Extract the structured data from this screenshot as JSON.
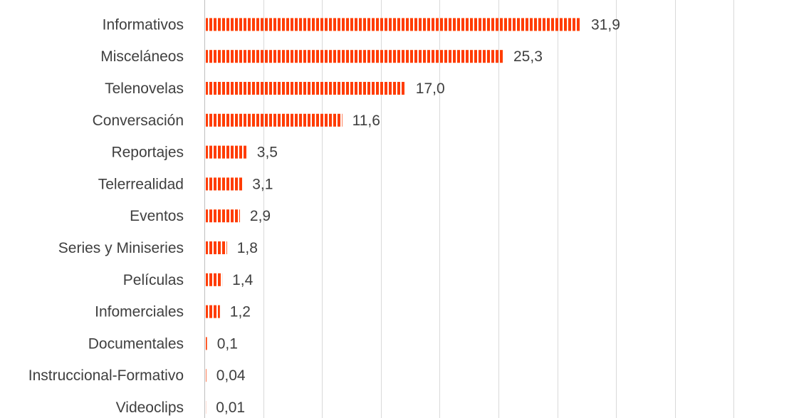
{
  "chart_data": {
    "type": "bar",
    "orientation": "horizontal",
    "categories": [
      "Informativos",
      "Misceláneos",
      "Telenovelas",
      "Conversación",
      "Reportajes",
      "Telerrealidad",
      "Eventos",
      "Series y Miniseries",
      "Películas",
      "Infomerciales",
      "Documentales",
      "Instruccional-Formativo",
      "Videoclips"
    ],
    "values": [
      31.9,
      25.3,
      17.0,
      11.6,
      3.5,
      3.1,
      2.9,
      1.8,
      1.4,
      1.2,
      0.1,
      0.04,
      0.01
    ],
    "value_labels": [
      "31,9",
      "25,3",
      "17,0",
      "11,6",
      "3,5",
      "3,1",
      "2,9",
      "1,8",
      "1,4",
      "1,2",
      "0,1",
      "0,04",
      "0,01"
    ],
    "xlim": [
      0,
      45
    ],
    "gridlines": true,
    "gridline_step": 5,
    "bar_color": "#ff3c00",
    "bar_pattern": "vertical-stripes",
    "title": "",
    "xlabel": "",
    "ylabel": ""
  }
}
